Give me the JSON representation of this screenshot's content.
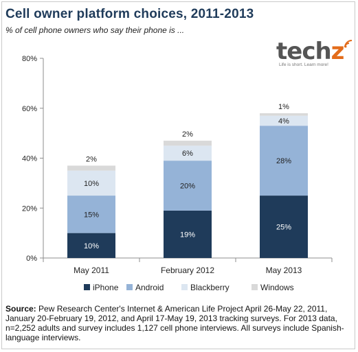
{
  "header": {
    "title": "Cell owner platform choices, 2011-2013",
    "subtitle": "% of cell phone owners who say their phone is ..."
  },
  "logo": {
    "word_main": "tech",
    "word_accent": "z",
    "tagline": "Life is short. Learn more!"
  },
  "footer": {
    "source_label": "Source:",
    "source_text": " Pew Research Center's Internet & American Life Project April 26-May 22, 2011, January 20-February 19, 2012, and April 17-May 19, 2013 tracking surveys. For 2013 data, n=2,252 adults and survey includes 1,127 cell phone interviews. All surveys include Spanish-language interviews."
  },
  "colors": {
    "iPhone": "#1f3b5a",
    "Android": "#95b3d7",
    "Blackberry": "#dce6f1",
    "Windows": "#d9d9d9",
    "dark_label": "#ffffff",
    "light_label": "#222222"
  },
  "chart_data": {
    "type": "bar",
    "stacked": true,
    "categories": [
      "May 2011",
      "February 2012",
      "May 2013"
    ],
    "series": [
      {
        "name": "iPhone",
        "values": [
          10,
          19,
          25
        ]
      },
      {
        "name": "Android",
        "values": [
          15,
          20,
          28
        ]
      },
      {
        "name": "Blackberry",
        "values": [
          10,
          6,
          4
        ]
      },
      {
        "name": "Windows",
        "values": [
          2,
          2,
          1
        ]
      }
    ],
    "ylim": [
      0,
      80
    ],
    "yticks": [
      0,
      20,
      40,
      60,
      80
    ],
    "ytick_labels": [
      "0%",
      "20%",
      "40%",
      "60%",
      "80%"
    ],
    "value_suffix": "%",
    "legend_position": "bottom",
    "grid": false
  }
}
